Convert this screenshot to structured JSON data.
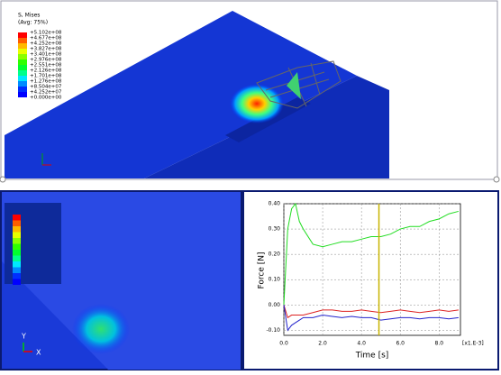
{
  "viewport": {
    "legend": {
      "title": "S, Mises",
      "subtitle": "(Avg: 75%)",
      "labels": [
        "+5.102e+08",
        "+4.677e+08",
        "+4.252e+08",
        "+3.827e+08",
        "+3.401e+08",
        "+2.976e+08",
        "+2.551e+08",
        "+2.126e+08",
        "+1.701e+08",
        "+1.276e+08",
        "+8.504e+07",
        "+4.252e+07",
        "+0.000e+00"
      ],
      "colors": [
        "#ff0000",
        "#ff5e00",
        "#ffb900",
        "#e8ff00",
        "#8bff00",
        "#2eff00",
        "#00ff2e",
        "#00ff8b",
        "#00e8ff",
        "#008bff",
        "#002eff",
        "#0000ff"
      ]
    },
    "triad": {
      "x": "X",
      "y": "Y"
    }
  },
  "chart_data": {
    "type": "line",
    "xlabel": "Time [s]",
    "ylabel": "Force [N]",
    "x_scale_note": "[x1.E-3]",
    "x": [
      0,
      0.2,
      0.4,
      0.6,
      0.8,
      1.0,
      1.5,
      2.0,
      2.5,
      3.0,
      3.5,
      4.0,
      4.5,
      5.0,
      5.5,
      6.0,
      6.5,
      7.0,
      7.5,
      8.0,
      8.5,
      9.0
    ],
    "series": [
      {
        "color": "#22dd22",
        "values": [
          0,
          0.3,
          0.38,
          0.4,
          0.33,
          0.3,
          0.24,
          0.23,
          0.24,
          0.25,
          0.25,
          0.26,
          0.27,
          0.27,
          0.28,
          0.3,
          0.31,
          0.31,
          0.33,
          0.34,
          0.36,
          0.37
        ]
      },
      {
        "color": "#dd2222",
        "values": [
          0,
          -0.05,
          -0.04,
          -0.04,
          -0.04,
          -0.04,
          -0.03,
          -0.02,
          -0.02,
          -0.025,
          -0.025,
          -0.02,
          -0.025,
          -0.03,
          -0.025,
          -0.02,
          -0.025,
          -0.03,
          -0.025,
          -0.02,
          -0.025,
          -0.02
        ]
      },
      {
        "color": "#2222cc",
        "values": [
          0,
          -0.1,
          -0.08,
          -0.07,
          -0.06,
          -0.05,
          -0.05,
          -0.04,
          -0.045,
          -0.05,
          -0.045,
          -0.05,
          -0.05,
          -0.06,
          -0.055,
          -0.05,
          -0.05,
          -0.055,
          -0.05,
          -0.05,
          -0.055,
          -0.05
        ]
      }
    ],
    "xlim": [
      0,
      9.1
    ],
    "ylim": [
      -0.12,
      0.4
    ],
    "xticks": [
      {
        "value": 0,
        "label": "0.0"
      },
      {
        "value": 2,
        "label": "2.0"
      },
      {
        "value": 4,
        "label": "4.0"
      },
      {
        "value": 6,
        "label": "6.0"
      },
      {
        "value": 8,
        "label": "8.0"
      }
    ],
    "yticks": [
      {
        "value": 0.4,
        "label": "0.40"
      },
      {
        "value": 0.3,
        "label": "0.30"
      },
      {
        "value": 0.2,
        "label": "0.20"
      },
      {
        "value": 0.1,
        "label": "0.10"
      },
      {
        "value": 0,
        "label": "0.00"
      },
      {
        "value": -0.1,
        "label": "-0.10"
      }
    ],
    "cursor_x": 4.9,
    "cursor_color": "#c8b400",
    "grid": true
  }
}
